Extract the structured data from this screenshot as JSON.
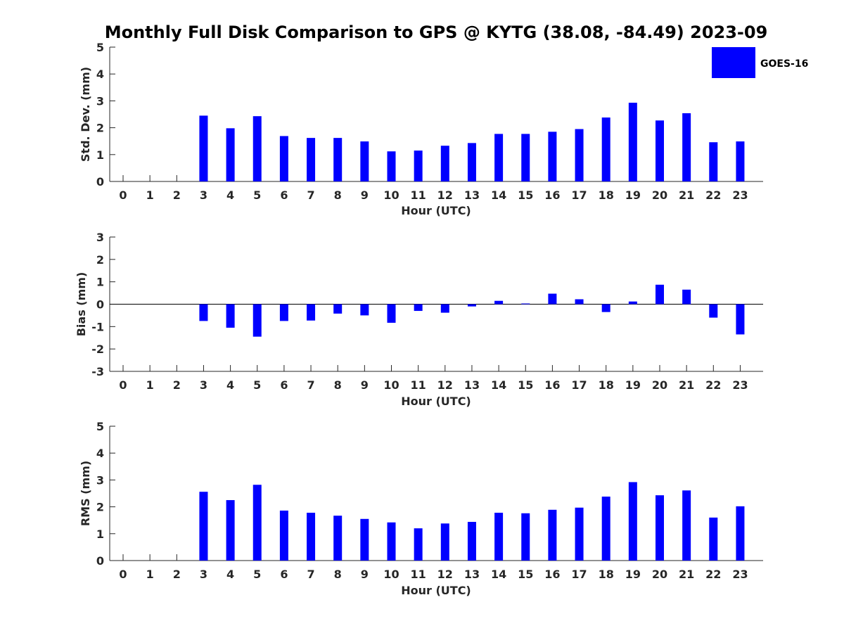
{
  "title": "Monthly Full Disk Comparison to GPS @ KYTG (38.08, -84.49) 2023-09",
  "legend": {
    "label": "GOES-16",
    "color": "#0000ff",
    "placement": "top-right"
  },
  "colors": {
    "bar": "#0000ff",
    "axis": "#262626"
  },
  "chart_data": [
    {
      "type": "bar",
      "xlabel": "Hour (UTC)",
      "ylabel": "Std. Dev. (mm)",
      "ylim": [
        0,
        5
      ],
      "yticks": [
        0,
        1,
        2,
        3,
        4,
        5
      ],
      "categories": [
        "0",
        "1",
        "2",
        "3",
        "4",
        "5",
        "6",
        "7",
        "8",
        "9",
        "10",
        "11",
        "12",
        "13",
        "14",
        "15",
        "16",
        "17",
        "18",
        "19",
        "20",
        "21",
        "22",
        "23"
      ],
      "series": [
        {
          "name": "GOES-16",
          "values": [
            null,
            null,
            null,
            2.45,
            1.98,
            2.43,
            1.69,
            1.62,
            1.62,
            1.49,
            1.12,
            1.15,
            1.33,
            1.43,
            1.77,
            1.77,
            1.85,
            1.95,
            2.38,
            2.93,
            2.27,
            2.54,
            1.46,
            1.49
          ]
        }
      ],
      "grid": false
    },
    {
      "type": "bar",
      "xlabel": "Hour (UTC)",
      "ylabel": "Bias (mm)",
      "ylim": [
        -3,
        3
      ],
      "yticks": [
        -3,
        -2,
        -1,
        0,
        1,
        2,
        3
      ],
      "categories": [
        "0",
        "1",
        "2",
        "3",
        "4",
        "5",
        "6",
        "7",
        "8",
        "9",
        "10",
        "11",
        "12",
        "13",
        "14",
        "15",
        "16",
        "17",
        "18",
        "19",
        "20",
        "21",
        "22",
        "23"
      ],
      "series": [
        {
          "name": "GOES-16",
          "values": [
            null,
            null,
            null,
            -0.75,
            -1.05,
            -1.45,
            -0.75,
            -0.73,
            -0.42,
            -0.5,
            -0.83,
            -0.3,
            -0.38,
            -0.1,
            0.15,
            0.03,
            0.47,
            0.22,
            -0.35,
            0.12,
            0.87,
            0.65,
            -0.6,
            -1.35
          ]
        }
      ],
      "zero_line": true,
      "grid": false
    },
    {
      "type": "bar",
      "xlabel": "Hour (UTC)",
      "ylabel": "RMS (mm)",
      "ylim": [
        0,
        5
      ],
      "yticks": [
        0,
        1,
        2,
        3,
        4,
        5
      ],
      "categories": [
        "0",
        "1",
        "2",
        "3",
        "4",
        "5",
        "6",
        "7",
        "8",
        "9",
        "10",
        "11",
        "12",
        "13",
        "14",
        "15",
        "16",
        "17",
        "18",
        "19",
        "20",
        "21",
        "22",
        "23"
      ],
      "series": [
        {
          "name": "GOES-16",
          "values": [
            null,
            null,
            null,
            2.56,
            2.25,
            2.82,
            1.86,
            1.78,
            1.67,
            1.55,
            1.42,
            1.2,
            1.38,
            1.44,
            1.78,
            1.76,
            1.89,
            1.97,
            2.38,
            2.92,
            2.43,
            2.61,
            1.6,
            2.02
          ]
        }
      ],
      "grid": false
    }
  ]
}
